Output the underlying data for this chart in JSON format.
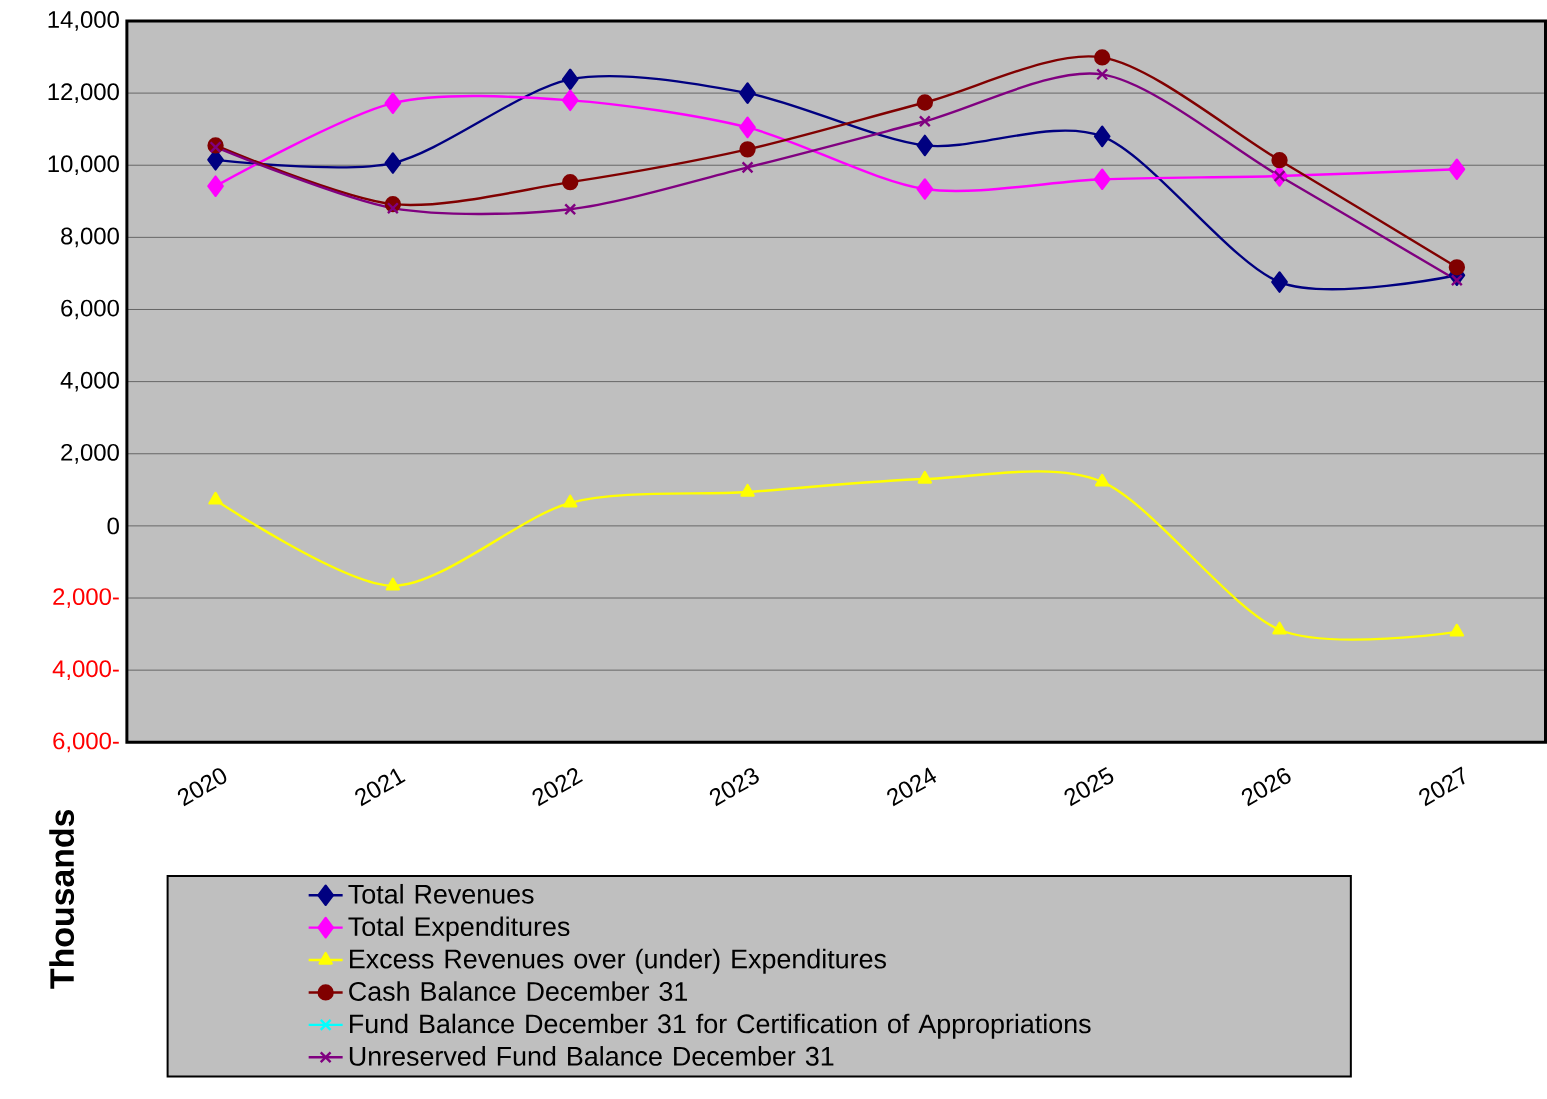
{
  "chart_data": {
    "type": "line",
    "ylabel": "Thousands",
    "categories": [
      "2020",
      "2021",
      "2022",
      "2023",
      "2024",
      "2025",
      "2026",
      "2027"
    ],
    "ylim": [
      -6000,
      14000
    ],
    "yticks": [
      {
        "value": -6000,
        "label": "6,000-"
      },
      {
        "value": -4000,
        "label": "4,000-"
      },
      {
        "value": -2000,
        "label": "2,000-"
      },
      {
        "value": 0,
        "label": "0"
      },
      {
        "value": 2000,
        "label": "2,000"
      },
      {
        "value": 4000,
        "label": "4,000"
      },
      {
        "value": 6000,
        "label": "6,000"
      },
      {
        "value": 8000,
        "label": "8,000"
      },
      {
        "value": 10000,
        "label": "10,000"
      },
      {
        "value": 12000,
        "label": "12,000"
      },
      {
        "value": 14000,
        "label": "14,000"
      }
    ],
    "grid": "y",
    "legend": "bottom",
    "series": [
      {
        "name": "Total Revenues",
        "color": "#000080",
        "marker": "diamond",
        "values": [
          10150,
          10060,
          12380,
          12000,
          10550,
          10800,
          6760,
          6950
        ]
      },
      {
        "name": "Total Expenditures",
        "color": "#ff00ff",
        "marker": "diamond",
        "values": [
          9420,
          11720,
          11800,
          11050,
          9340,
          9610,
          9700,
          9890
        ]
      },
      {
        "name": "Excess Revenues over (under)  Expenditures",
        "color": "#ffff00",
        "marker": "triangle",
        "values": [
          720,
          -1660,
          640,
          940,
          1300,
          1220,
          -2880,
          -2940
        ]
      },
      {
        "name": "Cash Balance December 31",
        "color": "#800000",
        "marker": "circle",
        "values": [
          10550,
          8920,
          9530,
          10440,
          11740,
          12990,
          10140,
          7170
        ]
      },
      {
        "name": "Fund Balance December 31 for Certification of Appropriations",
        "color": "#00ffff",
        "marker": "cross",
        "values": [
          null,
          null,
          null,
          null,
          null,
          null,
          null,
          null
        ]
      },
      {
        "name": "Unreserved Fund Balance December 31",
        "color": "#800080",
        "marker": "cross",
        "values": [
          10500,
          8810,
          8780,
          9940,
          11220,
          12520,
          9700,
          6810
        ]
      }
    ]
  }
}
